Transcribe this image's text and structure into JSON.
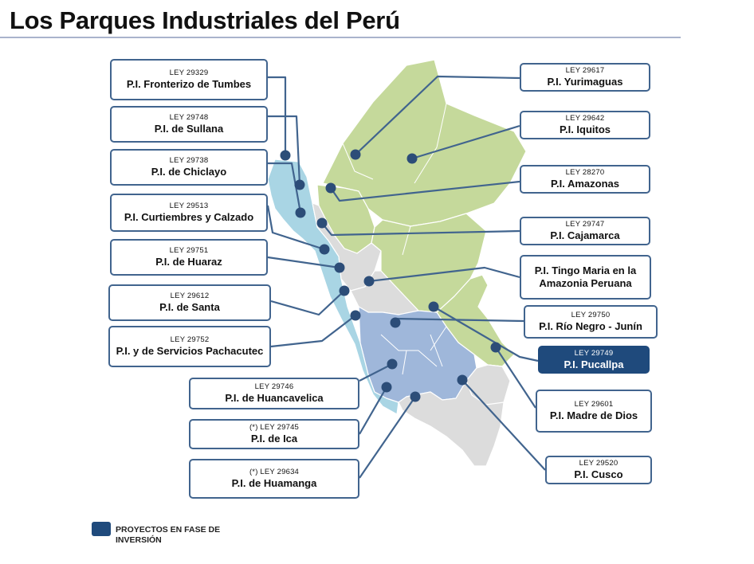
{
  "title": "Los Parques Industriales del Perú",
  "legend": {
    "label": "PROYECTOS EN FASE DE INVERSIÓN",
    "color": "#1f4a7c"
  },
  "colors": {
    "coast": "#a9d5e4",
    "sierra": "#dcdcdc",
    "jungle": "#c5d99b",
    "inversion": "#9fb7da",
    "border": "#ffffff",
    "line": "#41648e",
    "dot": "#2c4d78"
  },
  "parks": [
    {
      "id": "tumbes",
      "law": "LEY 29329",
      "name": "P.I. Fronterizo de Tumbes",
      "status": ""
    },
    {
      "id": "sullana",
      "law": "LEY 29748",
      "name": "P.I. de Sullana",
      "status": ""
    },
    {
      "id": "chiclayo",
      "law": "LEY 29738",
      "name": "P.I. de Chiclayo",
      "status": ""
    },
    {
      "id": "curtiembres",
      "law": "LEY 29513",
      "name": "P.I. Curtiembres y Calzado",
      "status": ""
    },
    {
      "id": "huaraz",
      "law": "LEY 29751",
      "name": "P.I. de Huaraz",
      "status": ""
    },
    {
      "id": "santa",
      "law": "LEY 29612",
      "name": "P.I. de Santa",
      "status": ""
    },
    {
      "id": "pachacutec",
      "law": "LEY 29752",
      "name": "P.I. y de Servicios Pachacutec",
      "status": ""
    },
    {
      "id": "huancavelica",
      "law": "LEY 29746",
      "name": "P.I. de Huancavelica",
      "status": ""
    },
    {
      "id": "ica",
      "law": "(*) LEY 29745",
      "name": "P.I. de Ica",
      "status": ""
    },
    {
      "id": "huamanga",
      "law": "(*) LEY 29634",
      "name": "P.I. de Huamanga",
      "status": ""
    },
    {
      "id": "yurimaguas",
      "law": "LEY  29617",
      "name": "P.I. Yurimaguas",
      "status": ""
    },
    {
      "id": "iquitos",
      "law": "LEY  29642",
      "name": "P.I. Iquitos",
      "status": ""
    },
    {
      "id": "amazonas",
      "law": "LEY 28270",
      "name": "P.I. Amazonas",
      "status": ""
    },
    {
      "id": "cajamarca",
      "law": "LEY 29747",
      "name": "P.I. Cajamarca",
      "status": ""
    },
    {
      "id": "tingo",
      "law": "",
      "name": "P.I. Tingo Maria en la Amazonia Peruana",
      "status": ""
    },
    {
      "id": "rionegro",
      "law": "LEY 29750",
      "name": "P.I. Río Negro - Junín",
      "status": ""
    },
    {
      "id": "pucallpa",
      "law": "LEY 29749",
      "name": "P.I. Pucallpa",
      "status": "inversion"
    },
    {
      "id": "madrededios",
      "law": "LEY 29601",
      "name": "P.I. Madre de Dios",
      "status": ""
    },
    {
      "id": "cusco",
      "law": "LEY 29520",
      "name": "P.I. Cusco",
      "status": ""
    }
  ]
}
